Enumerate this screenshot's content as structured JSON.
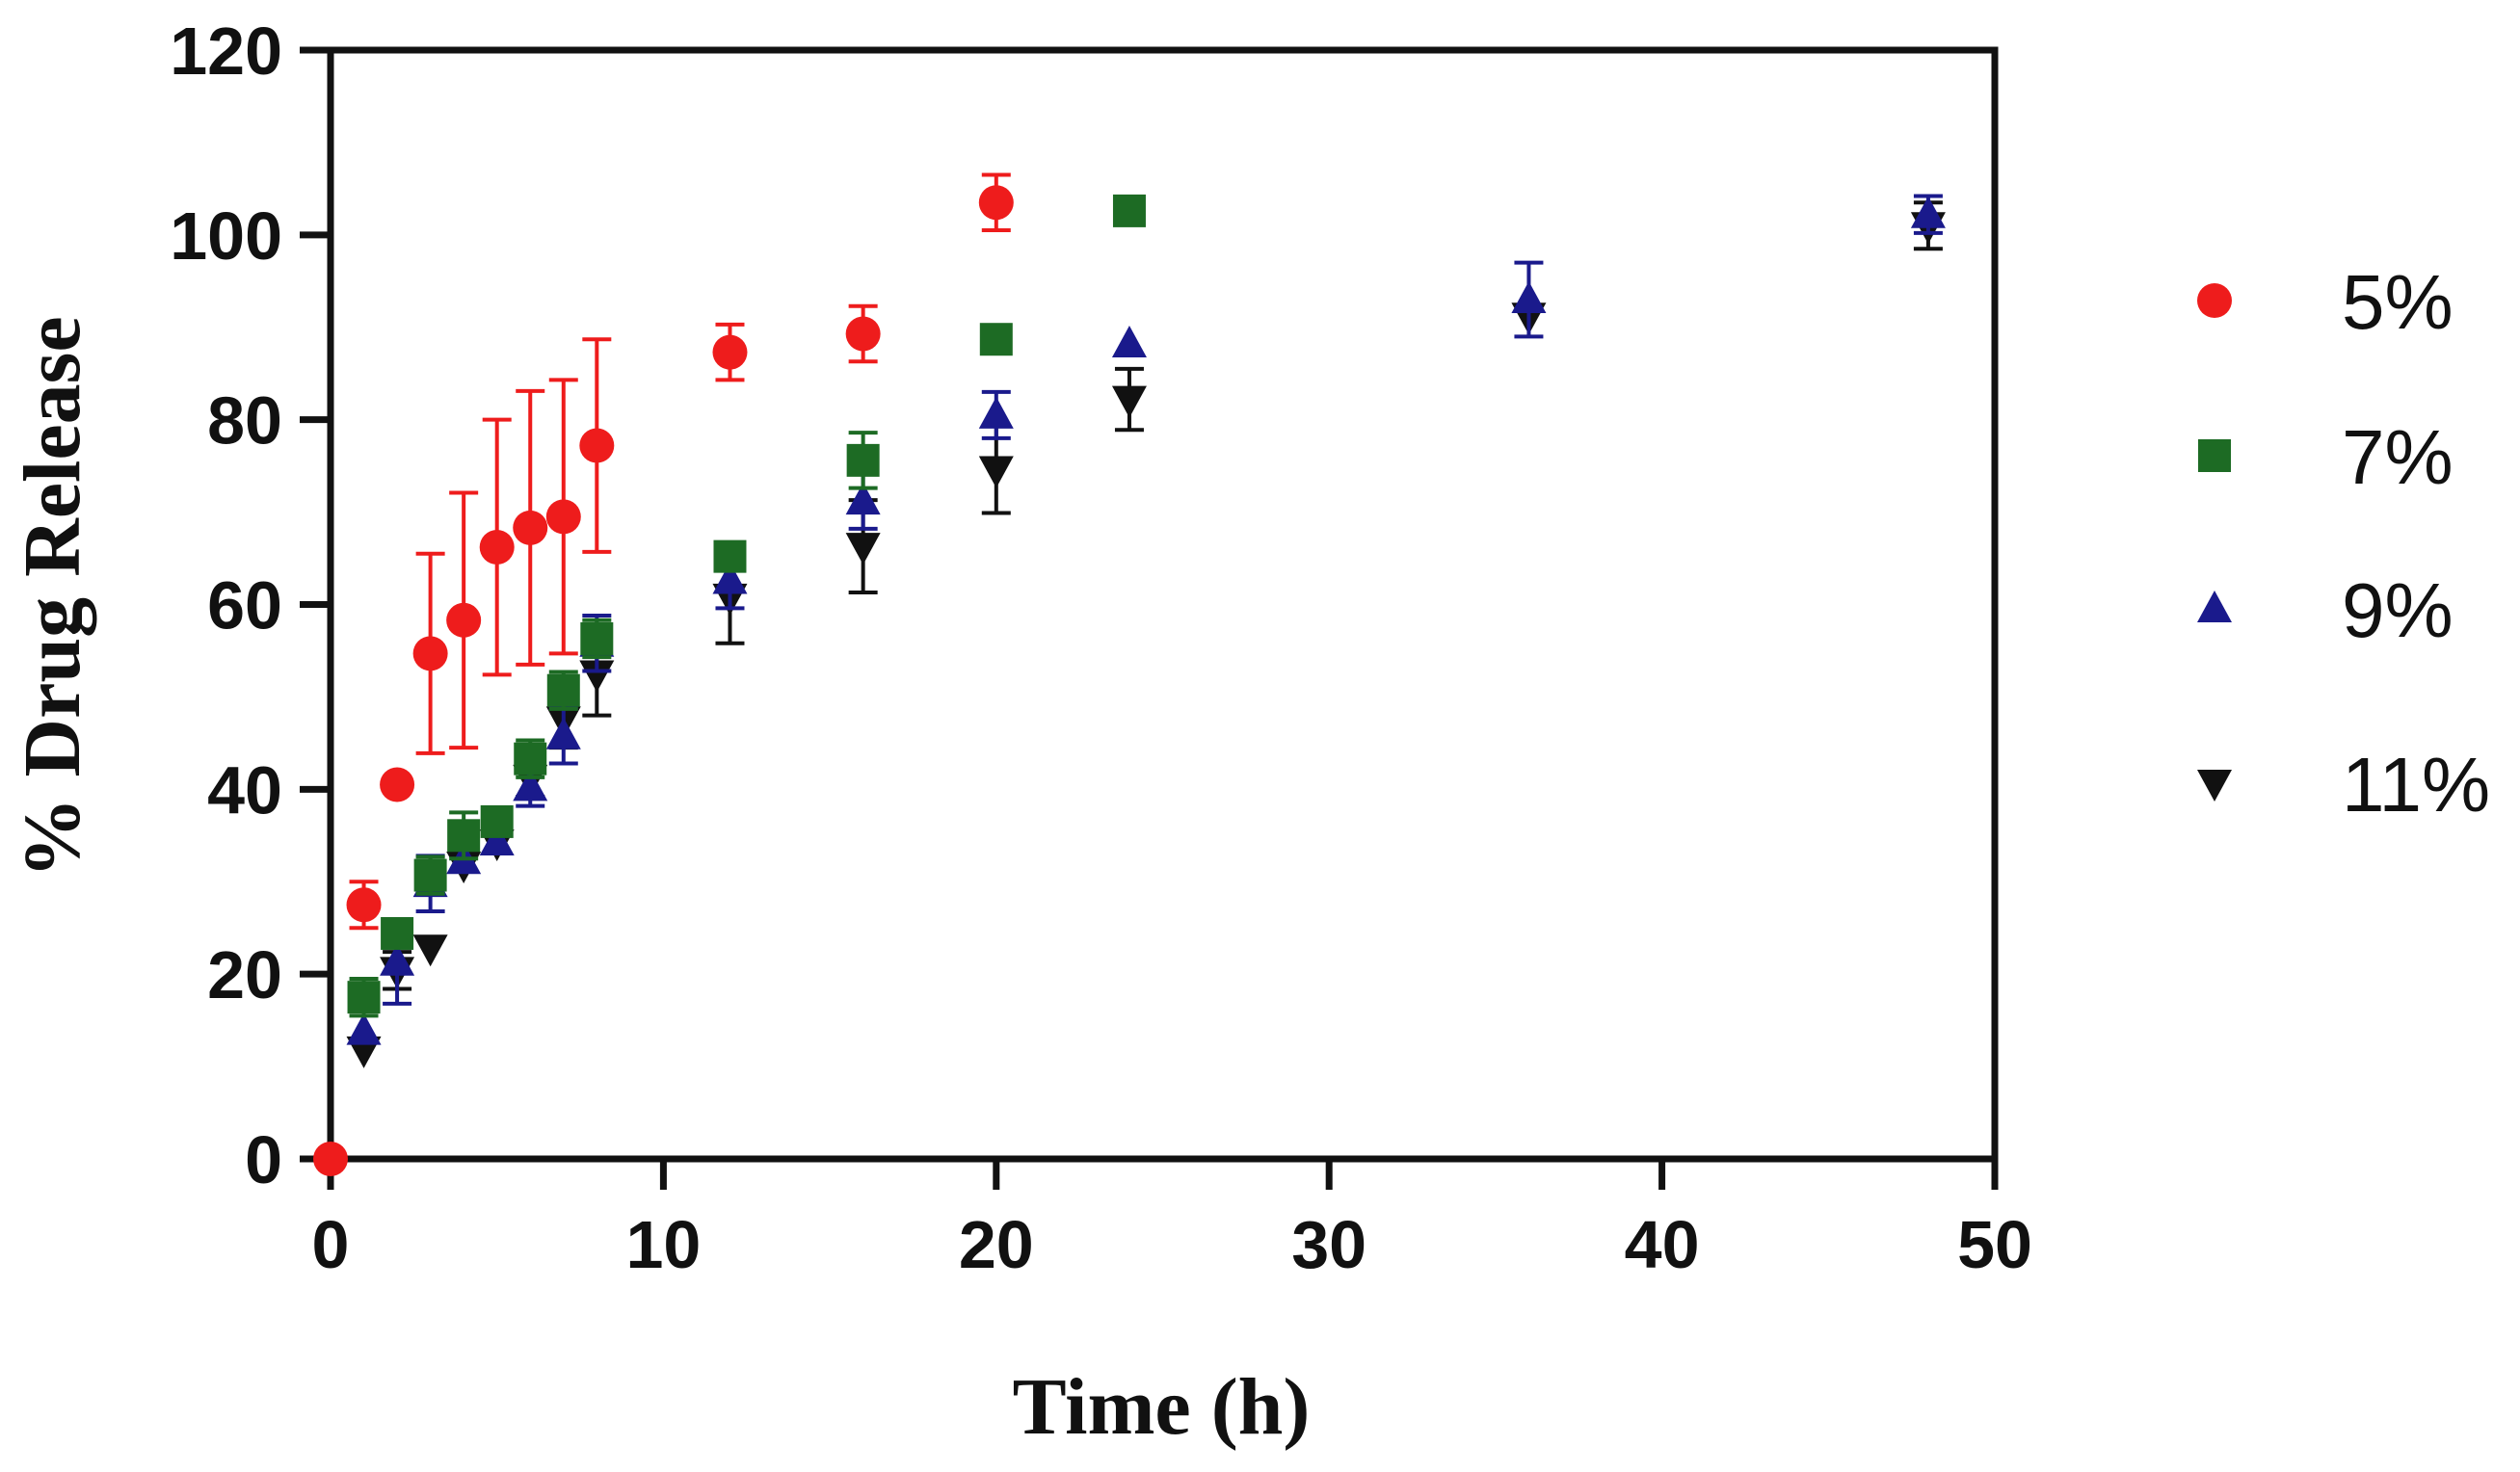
{
  "chart_data": {
    "type": "scatter",
    "title": "",
    "xlabel": "Time (h)",
    "ylabel": "% Drug Release",
    "xlim": [
      0,
      50
    ],
    "ylim": [
      0,
      120
    ],
    "xticks": [
      0,
      10,
      20,
      30,
      40,
      50
    ],
    "yticks": [
      0,
      20,
      40,
      60,
      80,
      100,
      120
    ],
    "grid": false,
    "legend_position": "right",
    "series": [
      {
        "name": "5%",
        "marker": "circle",
        "color": "#ee1c1c",
        "x": [
          0,
          1,
          2,
          3,
          4,
          5,
          6,
          7,
          8,
          12,
          16,
          20
        ],
        "y": [
          0,
          27.5,
          40.5,
          54.7,
          58.3,
          66.2,
          68.3,
          69.5,
          77.2,
          87.3,
          89.3,
          103.5
        ],
        "err": [
          0,
          2.5,
          0,
          10.8,
          13.8,
          13.8,
          14.8,
          14.8,
          11.5,
          3,
          3,
          3
        ]
      },
      {
        "name": "7%",
        "marker": "square",
        "color": "#1d6b24",
        "x": [
          1,
          2,
          3,
          4,
          5,
          6,
          7,
          8,
          12,
          16,
          20,
          24
        ],
        "y": [
          17.5,
          24.4,
          30.7,
          35,
          36.5,
          43.3,
          50.7,
          56.3,
          65.2,
          75.6,
          88.7,
          102.6
        ],
        "err": [
          2,
          0,
          2,
          2.5,
          0,
          2,
          2,
          2,
          0,
          3,
          0,
          0
        ]
      },
      {
        "name": "9%",
        "marker": "triangle-up",
        "color": "#1a1a8c",
        "x": [
          1,
          2,
          3,
          4,
          5,
          6,
          7,
          8,
          12,
          16,
          20,
          24,
          36,
          48
        ],
        "y": [
          13.8,
          21.3,
          29.8,
          32.3,
          34.3,
          40.2,
          45.8,
          55.8,
          62.6,
          71.2,
          80.5,
          88.2,
          93,
          102.2
        ],
        "err": [
          0,
          4.5,
          3,
          0,
          0,
          2,
          3,
          3,
          3,
          3,
          2.5,
          0,
          4,
          2
        ]
      },
      {
        "name": "11%",
        "marker": "triangle-down",
        "color": "#111111",
        "x": [
          1,
          2,
          3,
          4,
          5,
          6,
          7,
          8,
          12,
          16,
          20,
          24,
          36,
          48
        ],
        "y": [
          11.8,
          20.4,
          22.8,
          31.8,
          34.2,
          41.2,
          47.5,
          52.5,
          60.8,
          66.3,
          74.6,
          82.2,
          91.2,
          101
        ],
        "err": [
          0,
          2,
          0,
          0,
          0,
          2,
          3,
          4.5,
          5,
          5,
          4.7,
          3.3,
          0,
          2.5
        ]
      }
    ]
  }
}
